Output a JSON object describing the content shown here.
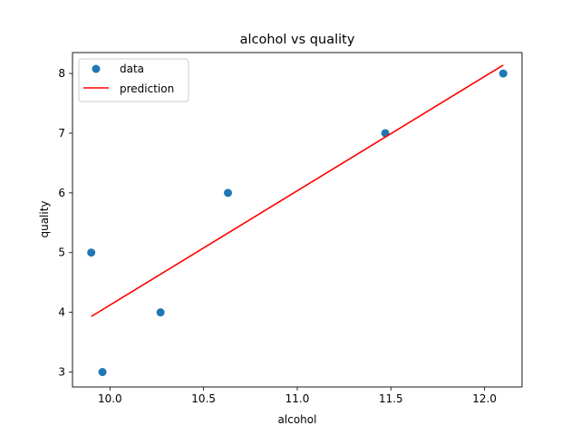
{
  "chart_data": {
    "type": "scatter",
    "title": "alcohol vs quality",
    "xlabel": "alcohol",
    "ylabel": "quality",
    "xlim": [
      9.8,
      12.2
    ],
    "ylim": [
      2.75,
      8.35
    ],
    "xticks": [
      10.0,
      10.5,
      11.0,
      11.5,
      12.0
    ],
    "xtick_labels": [
      "10.0",
      "10.5",
      "11.0",
      "11.5",
      "12.0"
    ],
    "yticks": [
      3,
      4,
      5,
      6,
      7,
      8
    ],
    "ytick_labels": [
      "3",
      "4",
      "5",
      "6",
      "7",
      "8"
    ],
    "grid": false,
    "legend_position": "upper-left",
    "series": [
      {
        "name": "data",
        "kind": "scatter",
        "color": "#1f77b4",
        "points": [
          {
            "x": 9.9,
            "y": 5
          },
          {
            "x": 9.96,
            "y": 3
          },
          {
            "x": 10.27,
            "y": 4
          },
          {
            "x": 10.63,
            "y": 6
          },
          {
            "x": 11.47,
            "y": 7
          },
          {
            "x": 12.1,
            "y": 8
          }
        ]
      },
      {
        "name": "prediction",
        "kind": "line",
        "color": "#ff0000",
        "points": [
          {
            "x": 9.9,
            "y": 3.93
          },
          {
            "x": 12.1,
            "y": 8.14
          }
        ]
      }
    ]
  }
}
